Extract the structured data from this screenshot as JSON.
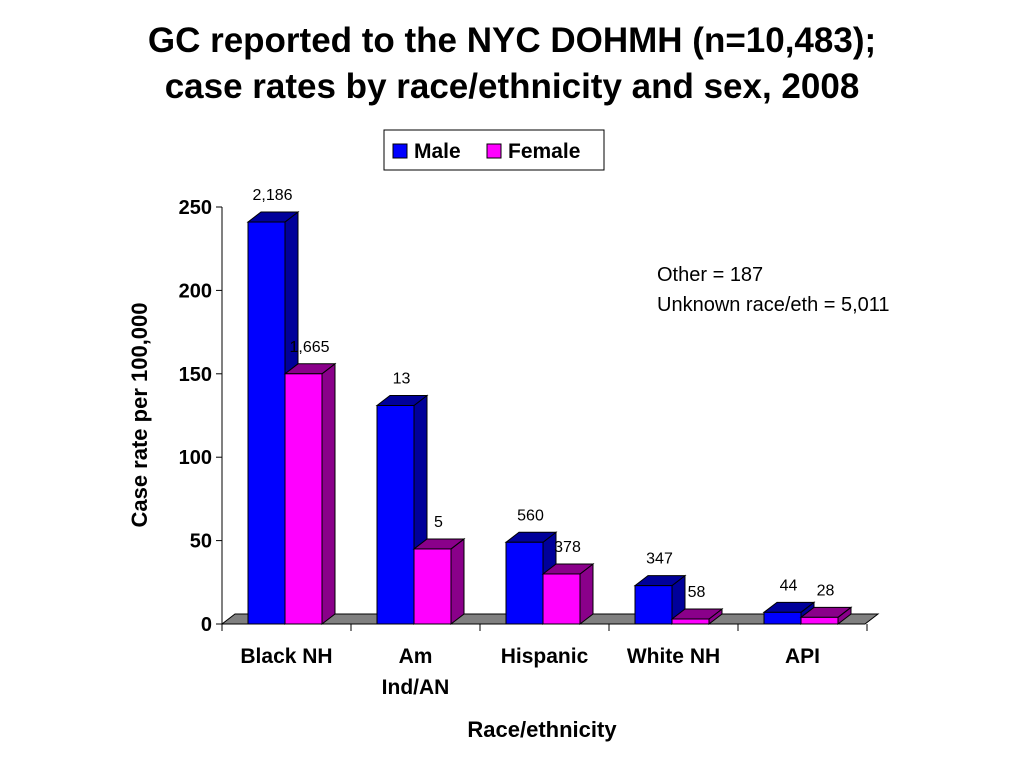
{
  "title": {
    "line1": "GC reported to the NYC DOHMH (n=10,483);",
    "line2": "case rates by race/ethnicity and sex, 2008"
  },
  "annotation": {
    "line1": "Other = 187",
    "line2": "Unknown race/eth = 5,011"
  },
  "colors": {
    "male": "#0000FF",
    "male_dark": "#00009A",
    "female": "#FF00FF",
    "female_dark": "#8A008A",
    "floor": "#808080"
  },
  "chart_data": {
    "type": "bar",
    "title": "GC reported to the NYC DOHMH (n=10,483); case rates by race/ethnicity and sex, 2008",
    "xlabel": "Race/ethnicity",
    "ylabel": "Case rate per 100,000",
    "ylim": [
      0,
      250
    ],
    "yticks": [
      0,
      50,
      100,
      150,
      200,
      250
    ],
    "grid": false,
    "legend": "top-center",
    "categories": [
      "Black NH",
      "Am Ind/AN",
      "Hispanic",
      "White NH",
      "API"
    ],
    "category_lines": [
      [
        "Black NH"
      ],
      [
        "Am",
        "Ind/AN"
      ],
      [
        "Hispanic"
      ],
      [
        "White NH"
      ],
      [
        "API"
      ]
    ],
    "series": [
      {
        "name": "Male",
        "values": [
          241,
          131,
          49,
          23,
          7
        ],
        "labels": [
          "2,186",
          "13",
          "560",
          "347",
          "44"
        ]
      },
      {
        "name": "Female",
        "values": [
          150,
          45,
          30,
          3,
          4
        ],
        "labels": [
          "1,665",
          "5",
          "378",
          "58",
          "28"
        ]
      }
    ]
  }
}
